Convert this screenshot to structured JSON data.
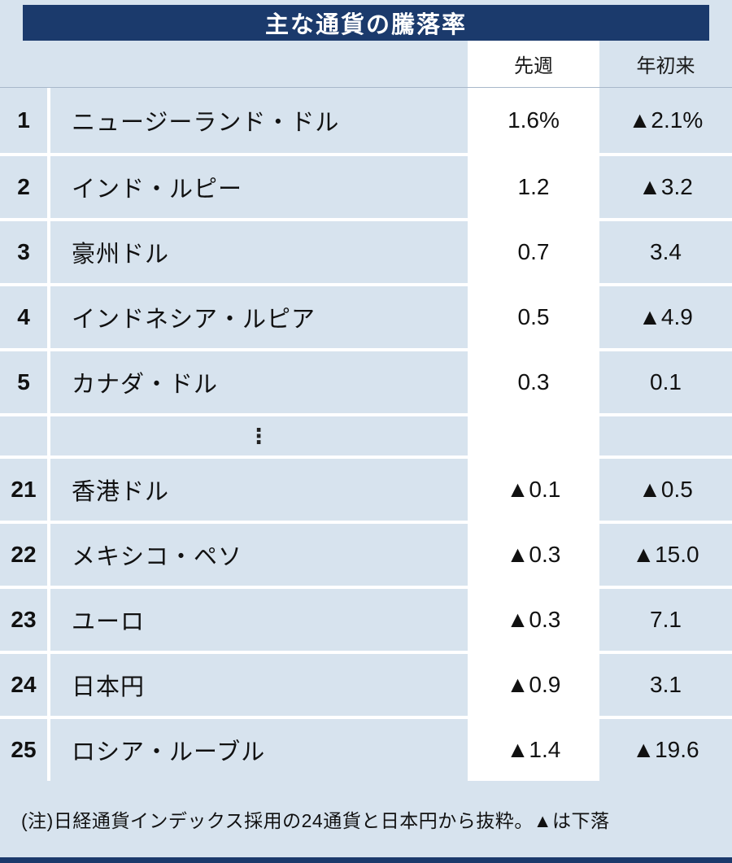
{
  "title": "主な通貨の騰落率",
  "chart_data": {
    "type": "table",
    "title": "主な通貨の騰落率",
    "columns": [
      "先週",
      "年初来"
    ],
    "header": {
      "week": "先週",
      "ytd": "年初来"
    },
    "rows": [
      {
        "rank": "1",
        "name": "ニュージーランド・ドル",
        "week": "1.6%",
        "ytd": "▲2.1%"
      },
      {
        "rank": "2",
        "name": "インド・ルピー",
        "week": "1.2",
        "ytd": "▲3.2"
      },
      {
        "rank": "3",
        "name": "豪州ドル",
        "week": "0.7",
        "ytd": "3.4"
      },
      {
        "rank": "4",
        "name": "インドネシア・ルピア",
        "week": "0.5",
        "ytd": "▲4.9"
      },
      {
        "rank": "5",
        "name": "カナダ・ドル",
        "week": "0.3",
        "ytd": "0.1"
      },
      {
        "rank": "21",
        "name": "香港ドル",
        "week": "▲0.1",
        "ytd": "▲0.5"
      },
      {
        "rank": "22",
        "name": "メキシコ・ペソ",
        "week": "▲0.3",
        "ytd": "▲15.0"
      },
      {
        "rank": "23",
        "name": "ユーロ",
        "week": "▲0.3",
        "ytd": "7.1"
      },
      {
        "rank": "24",
        "name": "日本円",
        "week": "▲0.9",
        "ytd": "3.1"
      },
      {
        "rank": "25",
        "name": "ロシア・ルーブル",
        "week": "▲1.4",
        "ytd": "▲19.6"
      }
    ],
    "ellipsis": "⋮",
    "note": "(注)日経通貨インデックス採用の24通貨と日本円から抜粋。▲は下落"
  },
  "colors": {
    "background": "#d7e3ee",
    "title_bg": "#1b3a6c",
    "week_column_bg": "#ffffff",
    "text": "#111111"
  }
}
